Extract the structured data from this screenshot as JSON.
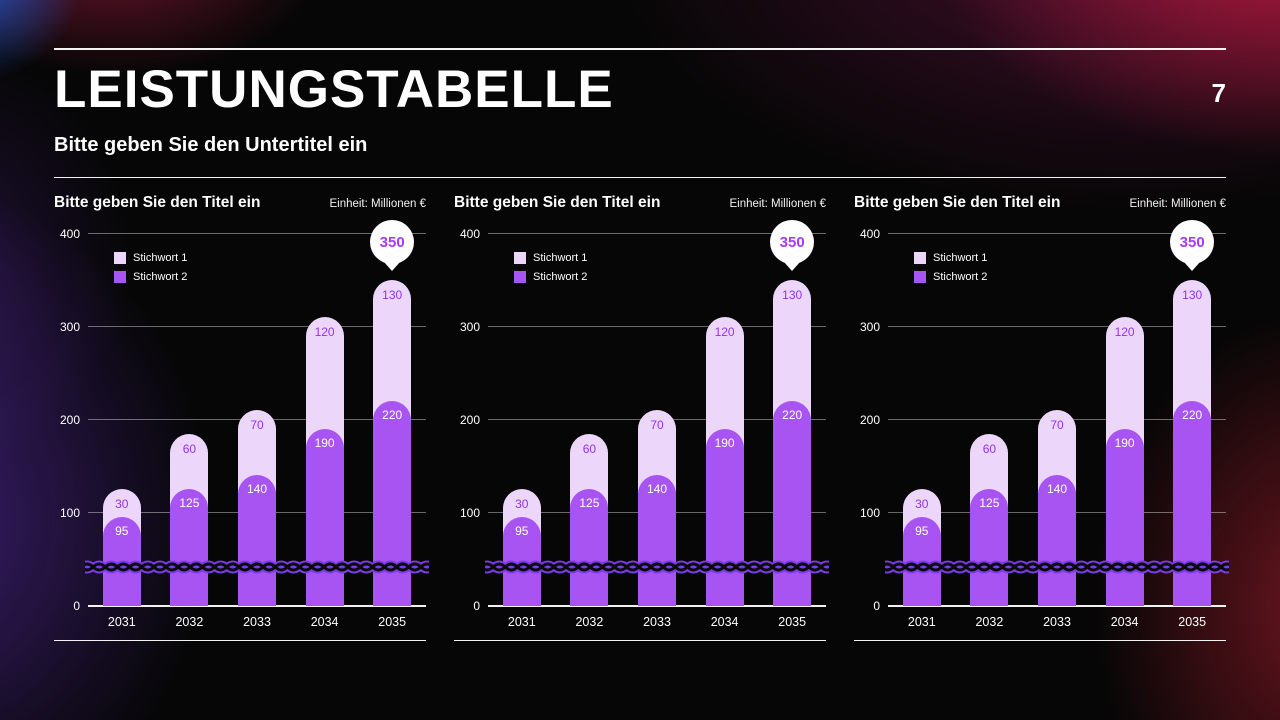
{
  "header": {
    "title": "LEISTUNGSTABELLE",
    "page_number": "7",
    "subtitle": "Bitte geben Sie den Untertitel ein"
  },
  "colors": {
    "background": "#060606",
    "text": "#ffffff",
    "series1_light": "#ecd6f9",
    "series2_purple": "#a854f2",
    "callout_text": "#a33bf5",
    "wave_halo": "#7c3aed",
    "wave_line": "#0b0b0b"
  },
  "chart_data": [
    {
      "type": "bar",
      "stacked": true,
      "title": "Bitte geben Sie den Titel ein",
      "unit_label": "Einheit: Millionen €",
      "categories": [
        "2031",
        "2032",
        "2033",
        "2034",
        "2035"
      ],
      "series": [
        {
          "name": "Stichwort 1",
          "color": "#ecd6f9",
          "label_color": "#9333ea",
          "values": [
            30,
            60,
            70,
            120,
            130
          ]
        },
        {
          "name": "Stichwort 2",
          "color": "#a854f2",
          "label_color": "#ffffff",
          "values": [
            95,
            125,
            140,
            190,
            220
          ]
        }
      ],
      "totals": [
        125,
        185,
        210,
        310,
        350
      ],
      "ylim": [
        0,
        400
      ],
      "yticks": [
        0,
        100,
        200,
        300,
        400
      ],
      "callout": {
        "value": "350",
        "category": "2035",
        "text_color": "#a33bf5"
      },
      "legend_position": "top-left",
      "grid": true
    },
    {
      "type": "bar",
      "stacked": true,
      "title": "Bitte geben Sie den Titel ein",
      "unit_label": "Einheit: Millionen €",
      "categories": [
        "2031",
        "2032",
        "2033",
        "2034",
        "2035"
      ],
      "series": [
        {
          "name": "Stichwort 1",
          "color": "#ecd6f9",
          "label_color": "#9333ea",
          "values": [
            30,
            60,
            70,
            120,
            130
          ]
        },
        {
          "name": "Stichwort 2",
          "color": "#a854f2",
          "label_color": "#ffffff",
          "values": [
            95,
            125,
            140,
            190,
            220
          ]
        }
      ],
      "totals": [
        125,
        185,
        210,
        310,
        350
      ],
      "ylim": [
        0,
        400
      ],
      "yticks": [
        0,
        100,
        200,
        300,
        400
      ],
      "callout": {
        "value": "350",
        "category": "2035",
        "text_color": "#a33bf5"
      },
      "legend_position": "top-left",
      "grid": true
    },
    {
      "type": "bar",
      "stacked": true,
      "title": "Bitte geben Sie den Titel ein",
      "unit_label": "Einheit: Millionen €",
      "categories": [
        "2031",
        "2032",
        "2033",
        "2034",
        "2035"
      ],
      "series": [
        {
          "name": "Stichwort 1",
          "color": "#ecd6f9",
          "label_color": "#9333ea",
          "values": [
            30,
            60,
            70,
            120,
            130
          ]
        },
        {
          "name": "Stichwort 2",
          "color": "#a854f2",
          "label_color": "#ffffff",
          "values": [
            95,
            125,
            140,
            190,
            220
          ]
        }
      ],
      "totals": [
        125,
        185,
        210,
        310,
        350
      ],
      "ylim": [
        0,
        400
      ],
      "yticks": [
        0,
        100,
        200,
        300,
        400
      ],
      "callout": {
        "value": "350",
        "category": "2035",
        "text_color": "#a33bf5"
      },
      "legend_position": "top-left",
      "grid": true
    }
  ]
}
